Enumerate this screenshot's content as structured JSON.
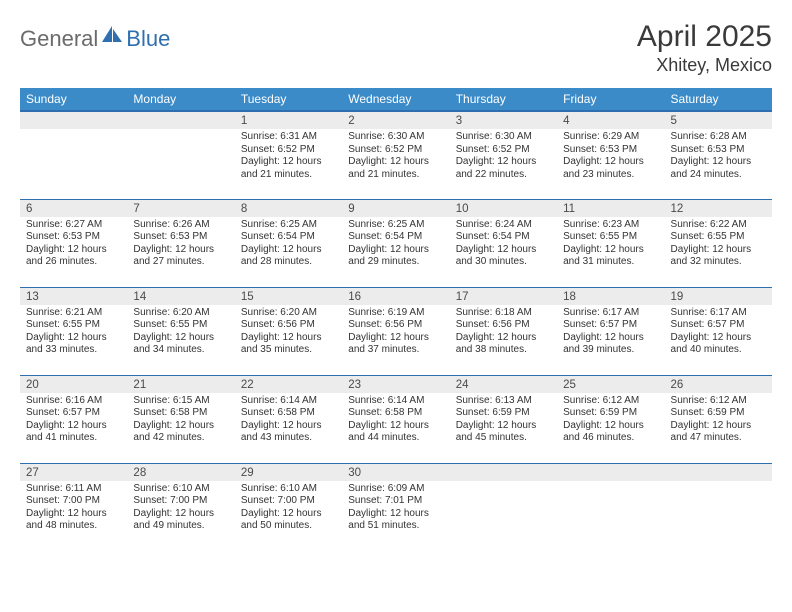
{
  "brand": {
    "part1": "General",
    "part2": "Blue"
  },
  "title": "April 2025",
  "location": "Xhitey, Mexico",
  "colors": {
    "header_bg": "#3b8bc9",
    "header_rule": "#2f6fb0",
    "strip_bg": "#ececec",
    "brand_gray": "#6b6b6b",
    "brand_blue": "#2f6fb0",
    "text": "#333333"
  },
  "days_of_week": [
    "Sunday",
    "Monday",
    "Tuesday",
    "Wednesday",
    "Thursday",
    "Friday",
    "Saturday"
  ],
  "weeks": [
    [
      {
        "date": "",
        "lines": []
      },
      {
        "date": "",
        "lines": []
      },
      {
        "date": "1",
        "lines": [
          "Sunrise: 6:31 AM",
          "Sunset: 6:52 PM",
          "Daylight: 12 hours and 21 minutes."
        ]
      },
      {
        "date": "2",
        "lines": [
          "Sunrise: 6:30 AM",
          "Sunset: 6:52 PM",
          "Daylight: 12 hours and 21 minutes."
        ]
      },
      {
        "date": "3",
        "lines": [
          "Sunrise: 6:30 AM",
          "Sunset: 6:52 PM",
          "Daylight: 12 hours and 22 minutes."
        ]
      },
      {
        "date": "4",
        "lines": [
          "Sunrise: 6:29 AM",
          "Sunset: 6:53 PM",
          "Daylight: 12 hours and 23 minutes."
        ]
      },
      {
        "date": "5",
        "lines": [
          "Sunrise: 6:28 AM",
          "Sunset: 6:53 PM",
          "Daylight: 12 hours and 24 minutes."
        ]
      }
    ],
    [
      {
        "date": "6",
        "lines": [
          "Sunrise: 6:27 AM",
          "Sunset: 6:53 PM",
          "Daylight: 12 hours and 26 minutes."
        ]
      },
      {
        "date": "7",
        "lines": [
          "Sunrise: 6:26 AM",
          "Sunset: 6:53 PM",
          "Daylight: 12 hours and 27 minutes."
        ]
      },
      {
        "date": "8",
        "lines": [
          "Sunrise: 6:25 AM",
          "Sunset: 6:54 PM",
          "Daylight: 12 hours and 28 minutes."
        ]
      },
      {
        "date": "9",
        "lines": [
          "Sunrise: 6:25 AM",
          "Sunset: 6:54 PM",
          "Daylight: 12 hours and 29 minutes."
        ]
      },
      {
        "date": "10",
        "lines": [
          "Sunrise: 6:24 AM",
          "Sunset: 6:54 PM",
          "Daylight: 12 hours and 30 minutes."
        ]
      },
      {
        "date": "11",
        "lines": [
          "Sunrise: 6:23 AM",
          "Sunset: 6:55 PM",
          "Daylight: 12 hours and 31 minutes."
        ]
      },
      {
        "date": "12",
        "lines": [
          "Sunrise: 6:22 AM",
          "Sunset: 6:55 PM",
          "Daylight: 12 hours and 32 minutes."
        ]
      }
    ],
    [
      {
        "date": "13",
        "lines": [
          "Sunrise: 6:21 AM",
          "Sunset: 6:55 PM",
          "Daylight: 12 hours and 33 minutes."
        ]
      },
      {
        "date": "14",
        "lines": [
          "Sunrise: 6:20 AM",
          "Sunset: 6:55 PM",
          "Daylight: 12 hours and 34 minutes."
        ]
      },
      {
        "date": "15",
        "lines": [
          "Sunrise: 6:20 AM",
          "Sunset: 6:56 PM",
          "Daylight: 12 hours and 35 minutes."
        ]
      },
      {
        "date": "16",
        "lines": [
          "Sunrise: 6:19 AM",
          "Sunset: 6:56 PM",
          "Daylight: 12 hours and 37 minutes."
        ]
      },
      {
        "date": "17",
        "lines": [
          "Sunrise: 6:18 AM",
          "Sunset: 6:56 PM",
          "Daylight: 12 hours and 38 minutes."
        ]
      },
      {
        "date": "18",
        "lines": [
          "Sunrise: 6:17 AM",
          "Sunset: 6:57 PM",
          "Daylight: 12 hours and 39 minutes."
        ]
      },
      {
        "date": "19",
        "lines": [
          "Sunrise: 6:17 AM",
          "Sunset: 6:57 PM",
          "Daylight: 12 hours and 40 minutes."
        ]
      }
    ],
    [
      {
        "date": "20",
        "lines": [
          "Sunrise: 6:16 AM",
          "Sunset: 6:57 PM",
          "Daylight: 12 hours and 41 minutes."
        ]
      },
      {
        "date": "21",
        "lines": [
          "Sunrise: 6:15 AM",
          "Sunset: 6:58 PM",
          "Daylight: 12 hours and 42 minutes."
        ]
      },
      {
        "date": "22",
        "lines": [
          "Sunrise: 6:14 AM",
          "Sunset: 6:58 PM",
          "Daylight: 12 hours and 43 minutes."
        ]
      },
      {
        "date": "23",
        "lines": [
          "Sunrise: 6:14 AM",
          "Sunset: 6:58 PM",
          "Daylight: 12 hours and 44 minutes."
        ]
      },
      {
        "date": "24",
        "lines": [
          "Sunrise: 6:13 AM",
          "Sunset: 6:59 PM",
          "Daylight: 12 hours and 45 minutes."
        ]
      },
      {
        "date": "25",
        "lines": [
          "Sunrise: 6:12 AM",
          "Sunset: 6:59 PM",
          "Daylight: 12 hours and 46 minutes."
        ]
      },
      {
        "date": "26",
        "lines": [
          "Sunrise: 6:12 AM",
          "Sunset: 6:59 PM",
          "Daylight: 12 hours and 47 minutes."
        ]
      }
    ],
    [
      {
        "date": "27",
        "lines": [
          "Sunrise: 6:11 AM",
          "Sunset: 7:00 PM",
          "Daylight: 12 hours and 48 minutes."
        ]
      },
      {
        "date": "28",
        "lines": [
          "Sunrise: 6:10 AM",
          "Sunset: 7:00 PM",
          "Daylight: 12 hours and 49 minutes."
        ]
      },
      {
        "date": "29",
        "lines": [
          "Sunrise: 6:10 AM",
          "Sunset: 7:00 PM",
          "Daylight: 12 hours and 50 minutes."
        ]
      },
      {
        "date": "30",
        "lines": [
          "Sunrise: 6:09 AM",
          "Sunset: 7:01 PM",
          "Daylight: 12 hours and 51 minutes."
        ]
      },
      {
        "date": "",
        "lines": []
      },
      {
        "date": "",
        "lines": []
      },
      {
        "date": "",
        "lines": []
      }
    ]
  ]
}
